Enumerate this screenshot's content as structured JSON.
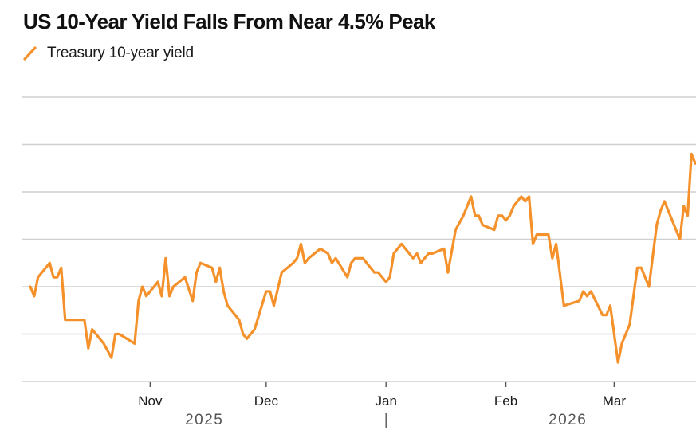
{
  "header": {
    "title": "US 10-Year Yield Falls From Near 4.5% Peak"
  },
  "legend": {
    "items": [
      {
        "label": "Treasury 10-year yield",
        "icon": "diagonal-line-icon",
        "color": "#f5912a"
      }
    ]
  },
  "chart_data": {
    "type": "line",
    "title": "US 10-Year Yield Falls From Near 4.5% Peak",
    "xlabel": "",
    "ylabel": "",
    "x_range": [
      "2025-10-01",
      "2026-03-22"
    ],
    "ylim": [
      3.9,
      4.5
    ],
    "y_gridlines": [
      3.9,
      4.0,
      4.1,
      4.2,
      4.3,
      4.4,
      4.5
    ],
    "y_tick_labels_visible": false,
    "grid": true,
    "legend_position": "top-left",
    "x_ticks": [
      {
        "date": "2025-11-01",
        "label": "Nov"
      },
      {
        "date": "2025-12-01",
        "label": "Dec"
      },
      {
        "date": "2026-01-01",
        "label": "Jan"
      },
      {
        "date": "2026-02-01",
        "label": "Feb"
      },
      {
        "date": "2026-03-01",
        "label": "Mar"
      }
    ],
    "year_labels": [
      {
        "label": "2025",
        "center_date": "2025-11-15"
      },
      {
        "label": "2026",
        "center_date": "2026-02-17"
      }
    ],
    "year_separator_date": "2026-01-01",
    "series": [
      {
        "name": "Treasury 10-year yield",
        "color": "#f5912a",
        "points": [
          [
            "2025-10-01",
            4.1
          ],
          [
            "2025-10-02",
            4.08
          ],
          [
            "2025-10-03",
            4.12
          ],
          [
            "2025-10-06",
            4.15
          ],
          [
            "2025-10-07",
            4.12
          ],
          [
            "2025-10-08",
            4.12
          ],
          [
            "2025-10-09",
            4.14
          ],
          [
            "2025-10-10",
            4.03
          ],
          [
            "2025-10-14",
            4.03
          ],
          [
            "2025-10-15",
            4.03
          ],
          [
            "2025-10-16",
            3.97
          ],
          [
            "2025-10-17",
            4.01
          ],
          [
            "2025-10-20",
            3.98
          ],
          [
            "2025-10-22",
            3.95
          ],
          [
            "2025-10-23",
            4.0
          ],
          [
            "2025-10-24",
            4.0
          ],
          [
            "2025-10-28",
            3.98
          ],
          [
            "2025-10-29",
            4.07
          ],
          [
            "2025-10-30",
            4.1
          ],
          [
            "2025-10-31",
            4.08
          ],
          [
            "2025-11-03",
            4.11
          ],
          [
            "2025-11-04",
            4.08
          ],
          [
            "2025-11-05",
            4.16
          ],
          [
            "2025-11-06",
            4.08
          ],
          [
            "2025-11-07",
            4.1
          ],
          [
            "2025-11-10",
            4.12
          ],
          [
            "2025-11-12",
            4.07
          ],
          [
            "2025-11-13",
            4.13
          ],
          [
            "2025-11-14",
            4.15
          ],
          [
            "2025-11-17",
            4.14
          ],
          [
            "2025-11-18",
            4.11
          ],
          [
            "2025-11-19",
            4.14
          ],
          [
            "2025-11-20",
            4.09
          ],
          [
            "2025-11-21",
            4.06
          ],
          [
            "2025-11-24",
            4.03
          ],
          [
            "2025-11-25",
            4.0
          ],
          [
            "2025-11-26",
            3.99
          ],
          [
            "2025-11-28",
            4.01
          ],
          [
            "2025-12-01",
            4.09
          ],
          [
            "2025-12-02",
            4.09
          ],
          [
            "2025-12-03",
            4.06
          ],
          [
            "2025-12-05",
            4.13
          ],
          [
            "2025-12-08",
            4.15
          ],
          [
            "2025-12-09",
            4.16
          ],
          [
            "2025-12-10",
            4.19
          ],
          [
            "2025-12-11",
            4.15
          ],
          [
            "2025-12-12",
            4.16
          ],
          [
            "2025-12-15",
            4.18
          ],
          [
            "2025-12-17",
            4.17
          ],
          [
            "2025-12-18",
            4.15
          ],
          [
            "2025-12-19",
            4.16
          ],
          [
            "2025-12-22",
            4.12
          ],
          [
            "2025-12-23",
            4.15
          ],
          [
            "2025-12-24",
            4.16
          ],
          [
            "2025-12-26",
            4.16
          ],
          [
            "2025-12-29",
            4.13
          ],
          [
            "2025-12-30",
            4.13
          ],
          [
            "2025-12-31",
            4.12
          ],
          [
            "2026-01-01",
            4.11
          ],
          [
            "2026-01-02",
            4.12
          ],
          [
            "2026-01-03",
            4.17
          ],
          [
            "2026-01-05",
            4.19
          ],
          [
            "2026-01-08",
            4.16
          ],
          [
            "2026-01-09",
            4.17
          ],
          [
            "2026-01-10",
            4.15
          ],
          [
            "2026-01-12",
            4.17
          ],
          [
            "2026-01-13",
            4.17
          ],
          [
            "2026-01-16",
            4.18
          ],
          [
            "2026-01-17",
            4.13
          ],
          [
            "2026-01-19",
            4.22
          ],
          [
            "2026-01-21",
            4.25
          ],
          [
            "2026-01-23",
            4.29
          ],
          [
            "2026-01-24",
            4.25
          ],
          [
            "2026-01-25",
            4.25
          ],
          [
            "2026-01-26",
            4.23
          ],
          [
            "2026-01-29",
            4.22
          ],
          [
            "2026-01-30",
            4.25
          ],
          [
            "2026-01-31",
            4.25
          ],
          [
            "2026-02-01",
            4.24
          ],
          [
            "2026-02-02",
            4.25
          ],
          [
            "2026-02-03",
            4.27
          ],
          [
            "2026-02-04",
            4.28
          ],
          [
            "2026-02-05",
            4.29
          ],
          [
            "2026-02-06",
            4.28
          ],
          [
            "2026-02-07",
            4.29
          ],
          [
            "2026-02-08",
            4.19
          ],
          [
            "2026-02-09",
            4.21
          ],
          [
            "2026-02-12",
            4.21
          ],
          [
            "2026-02-13",
            4.16
          ],
          [
            "2026-02-14",
            4.19
          ],
          [
            "2026-02-16",
            4.06
          ],
          [
            "2026-02-20",
            4.07
          ],
          [
            "2026-02-21",
            4.09
          ],
          [
            "2026-02-22",
            4.08
          ],
          [
            "2026-02-23",
            4.09
          ],
          [
            "2026-02-26",
            4.04
          ],
          [
            "2026-02-27",
            4.04
          ],
          [
            "2026-02-28",
            4.06
          ],
          [
            "2026-03-02",
            3.94
          ],
          [
            "2026-03-03",
            3.98
          ],
          [
            "2026-03-05",
            4.02
          ],
          [
            "2026-03-07",
            4.14
          ],
          [
            "2026-03-08",
            4.14
          ],
          [
            "2026-03-10",
            4.1
          ],
          [
            "2026-03-12",
            4.23
          ],
          [
            "2026-03-13",
            4.26
          ],
          [
            "2026-03-14",
            4.28
          ],
          [
            "2026-03-18",
            4.2
          ],
          [
            "2026-03-19",
            4.27
          ],
          [
            "2026-03-20",
            4.25
          ],
          [
            "2026-03-21",
            4.38
          ],
          [
            "2026-03-22",
            4.36
          ]
        ]
      }
    ]
  }
}
